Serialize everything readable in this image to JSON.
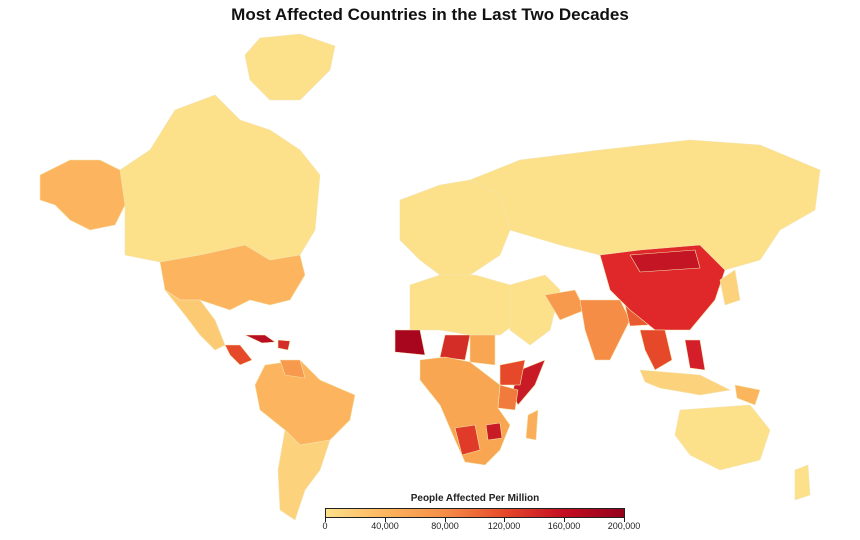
{
  "title": "Most Affected Countries in the Last Two Decades",
  "legend": {
    "title": "People Affected Per Million",
    "min": 0,
    "max": 200000,
    "ticks": [
      "0",
      "40,000",
      "80,000",
      "120,000",
      "160,000",
      "200,000"
    ],
    "colors": [
      "#fde08a",
      "#fcb55e",
      "#f58d47",
      "#e6482a",
      "#c20e22",
      "#95011c"
    ]
  },
  "map_data": {
    "type": "choropleth",
    "regions": [
      {
        "name": "Greenland",
        "value": 5000,
        "color": "#fde08a"
      },
      {
        "name": "Canada",
        "value": 6000,
        "color": "#fde08a"
      },
      {
        "name": "Alaska",
        "value": 40000,
        "color": "#fcb55e"
      },
      {
        "name": "United States",
        "value": 45000,
        "color": "#fcb55e"
      },
      {
        "name": "Mexico",
        "value": 25000,
        "color": "#fdca74"
      },
      {
        "name": "Central America",
        "value": 130000,
        "color": "#e6482a"
      },
      {
        "name": "Cuba",
        "value": 190000,
        "color": "#b80f23"
      },
      {
        "name": "Haiti",
        "value": 150000,
        "color": "#d42c27"
      },
      {
        "name": "South America North",
        "value": 45000,
        "color": "#fcb55e"
      },
      {
        "name": "Venezuela",
        "value": 70000,
        "color": "#f79a4e"
      },
      {
        "name": "South America South",
        "value": 20000,
        "color": "#fdd27c"
      },
      {
        "name": "Europe",
        "value": 5000,
        "color": "#fde08a"
      },
      {
        "name": "Russia",
        "value": 5000,
        "color": "#fde08a"
      },
      {
        "name": "North Africa",
        "value": 5000,
        "color": "#fde08a"
      },
      {
        "name": "Mauritania",
        "value": 195000,
        "color": "#a8051f"
      },
      {
        "name": "Niger",
        "value": 150000,
        "color": "#d42c27"
      },
      {
        "name": "Chad",
        "value": 60000,
        "color": "#f8a652"
      },
      {
        "name": "Somalia",
        "value": 160000,
        "color": "#c91b25"
      },
      {
        "name": "Ethiopia",
        "value": 130000,
        "color": "#e6482a"
      },
      {
        "name": "Kenya",
        "value": 95000,
        "color": "#f07b3d"
      },
      {
        "name": "Southern Africa",
        "value": 60000,
        "color": "#f8a652"
      },
      {
        "name": "Namibia",
        "value": 140000,
        "color": "#e03a29"
      },
      {
        "name": "Zimbabwe",
        "value": 160000,
        "color": "#c91b25"
      },
      {
        "name": "Madagascar",
        "value": 55000,
        "color": "#fbae5a"
      },
      {
        "name": "Middle East",
        "value": 10000,
        "color": "#fde08a"
      },
      {
        "name": "Pakistan",
        "value": 70000,
        "color": "#f79a4e"
      },
      {
        "name": "India",
        "value": 100000,
        "color": "#f58d47"
      },
      {
        "name": "Bangladesh",
        "value": 120000,
        "color": "#ea5a30"
      },
      {
        "name": "China",
        "value": 150000,
        "color": "#e0282a"
      },
      {
        "name": "Mongolia",
        "value": 175000,
        "color": "#c41524"
      },
      {
        "name": "Southeast Asia",
        "value": 130000,
        "color": "#e6482a"
      },
      {
        "name": "Philippines",
        "value": 170000,
        "color": "#d41f2a"
      },
      {
        "name": "Japan",
        "value": 15000,
        "color": "#fdd27c"
      },
      {
        "name": "Indonesia",
        "value": 15000,
        "color": "#fdd27c"
      },
      {
        "name": "Papua New Guinea",
        "value": 50000,
        "color": "#fbb55d"
      },
      {
        "name": "Australia",
        "value": 5000,
        "color": "#fde08a"
      },
      {
        "name": "New Zealand",
        "value": 5000,
        "color": "#fde08a"
      }
    ]
  }
}
